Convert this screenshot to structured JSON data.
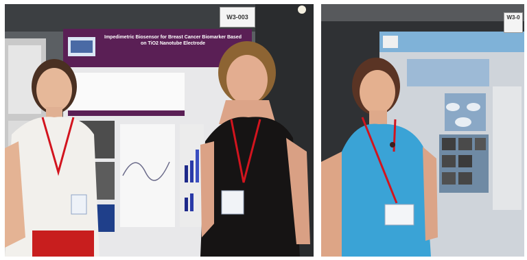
{
  "images": [
    {
      "description_id": "left",
      "board_id": "W3-003",
      "poster_title": "Impedimetric Biosensor for Breast Cancer Biomarker Based on TiO2 Nanotube Electrode"
    },
    {
      "description_id": "right",
      "board_id": "W3-0"
    }
  ],
  "colors": {
    "poster_purple": "#5a1f55",
    "top_right_blue": "#7fb2d8",
    "lanyard_red": "#d2141e",
    "dress_black": "#161414",
    "shirt_white": "#f2f0ec",
    "top_turquoise": "#3aa3d6"
  }
}
